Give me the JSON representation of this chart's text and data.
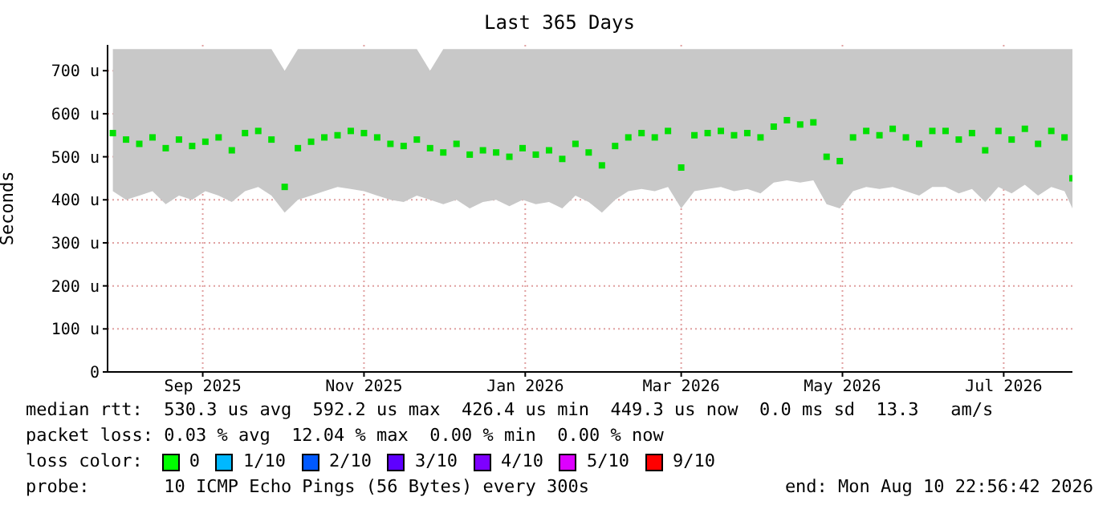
{
  "chart_data": {
    "type": "scatter",
    "title": "Last 365 Days",
    "ylabel": "Seconds",
    "x": [
      "2025-08-12",
      "2025-08-17",
      "2025-08-22",
      "2025-08-27",
      "2025-09-01",
      "2025-09-06",
      "2025-09-11",
      "2025-09-16",
      "2025-09-21",
      "2025-09-26",
      "2025-10-01",
      "2025-10-06",
      "2025-10-11",
      "2025-10-16",
      "2025-10-21",
      "2025-10-26",
      "2025-10-31",
      "2025-11-05",
      "2025-11-10",
      "2025-11-15",
      "2025-11-20",
      "2025-11-25",
      "2025-11-30",
      "2025-12-05",
      "2025-12-10",
      "2025-12-15",
      "2025-12-20",
      "2025-12-25",
      "2025-12-30",
      "2026-01-04",
      "2026-01-09",
      "2026-01-14",
      "2026-01-19",
      "2026-01-24",
      "2026-01-29",
      "2026-02-03",
      "2026-02-08",
      "2026-02-13",
      "2026-02-18",
      "2026-02-23",
      "2026-02-28",
      "2026-03-05",
      "2026-03-10",
      "2026-03-15",
      "2026-03-20",
      "2026-03-25",
      "2026-03-30",
      "2026-04-04",
      "2026-04-09",
      "2026-04-14",
      "2026-04-19",
      "2026-04-24",
      "2026-04-29",
      "2026-05-04",
      "2026-05-09",
      "2026-05-14",
      "2026-05-19",
      "2026-05-24",
      "2026-05-29",
      "2026-06-03",
      "2026-06-08",
      "2026-06-13",
      "2026-06-18",
      "2026-06-23",
      "2026-06-28",
      "2026-07-03",
      "2026-07-08",
      "2026-07-13",
      "2026-07-18",
      "2026-07-23",
      "2026-07-28",
      "2026-08-02",
      "2026-08-07",
      "2026-08-10"
    ],
    "series": [
      {
        "color": "#00e000",
        "values": [
          555,
          540,
          530,
          545,
          520,
          540,
          525,
          535,
          545,
          515,
          555,
          560,
          540,
          430,
          520,
          535,
          545,
          550,
          560,
          555,
          545,
          530,
          525,
          540,
          520,
          510,
          530,
          505,
          515,
          510,
          500,
          520,
          505,
          515,
          495,
          530,
          510,
          480,
          525,
          545,
          555,
          545,
          560,
          475,
          550,
          555,
          560,
          550,
          555,
          545,
          570,
          585,
          575,
          580,
          500,
          490,
          545,
          560,
          550,
          565,
          545,
          530,
          560,
          560,
          540,
          555,
          515,
          560,
          540,
          565,
          530,
          560,
          545,
          450
        ],
        "lower": [
          420,
          400,
          410,
          420,
          390,
          410,
          400,
          420,
          410,
          395,
          420,
          430,
          410,
          370,
          400,
          410,
          420,
          430,
          425,
          420,
          410,
          400,
          395,
          410,
          400,
          390,
          400,
          380,
          395,
          400,
          385,
          400,
          390,
          395,
          380,
          410,
          395,
          370,
          400,
          420,
          425,
          420,
          430,
          380,
          420,
          425,
          430,
          420,
          425,
          415,
          440,
          445,
          440,
          445,
          390,
          380,
          420,
          430,
          425,
          430,
          420,
          410,
          430,
          430,
          415,
          425,
          395,
          430,
          415,
          435,
          410,
          430,
          420,
          380
        ],
        "upper": [
          750,
          750,
          750,
          750,
          750,
          750,
          750,
          750,
          750,
          750,
          750,
          750,
          750,
          700,
          750,
          750,
          750,
          750,
          750,
          750,
          750,
          750,
          750,
          750,
          700,
          750,
          750,
          750,
          750,
          750,
          750,
          750,
          750,
          750,
          750,
          750,
          750,
          750,
          750,
          750,
          750,
          750,
          750,
          750,
          750,
          750,
          750,
          750,
          750,
          750,
          750,
          750,
          750,
          750,
          750,
          750,
          750,
          750,
          750,
          750,
          750,
          750,
          750,
          750,
          750,
          750,
          750,
          750,
          750,
          750,
          750,
          750,
          750,
          750
        ]
      }
    ],
    "marker": "square",
    "xlim": [
      "2025-08-10",
      "2026-08-10"
    ],
    "xticks": [
      {
        "value": "2025-09-15",
        "label": "Sep 2025"
      },
      {
        "value": "2025-11-15",
        "label": "Nov 2025"
      },
      {
        "value": "2026-01-15",
        "label": "Jan 2026"
      },
      {
        "value": "2026-03-15",
        "label": "Mar 2026"
      },
      {
        "value": "2026-05-15",
        "label": "May 2026"
      },
      {
        "value": "2026-07-15",
        "label": "Jul 2026"
      }
    ],
    "ylim": [
      0,
      760
    ],
    "yticks": [
      0,
      {
        "value": 100,
        "label": "100 u"
      },
      {
        "value": 200,
        "label": "200 u"
      },
      {
        "value": 300,
        "label": "300 u"
      },
      {
        "value": 400,
        "label": "400 u"
      },
      {
        "value": 500,
        "label": "500 u"
      },
      {
        "value": 600,
        "label": "600 u"
      },
      {
        "value": 700,
        "label": "700 u"
      }
    ],
    "grid": true,
    "legend": false,
    "annotations": [
      "median rtt:  530.3 us avg  592.2 us max  426.4 us min  449.3 us now  0.0 ms sd  13.3   am/s",
      "packet loss: 0.03 % avg  12.04 % max  0.00 % min  0.00 % now",
      "loss color:",
      "0",
      "1/10",
      "2/10",
      "3/10",
      "4/10",
      "5/10",
      "9/10",
      "probe:       10 ICMP Echo Pings (56 Bytes) every 300s",
      "end: Mon Aug 10 22:56:42 2026"
    ]
  }
}
